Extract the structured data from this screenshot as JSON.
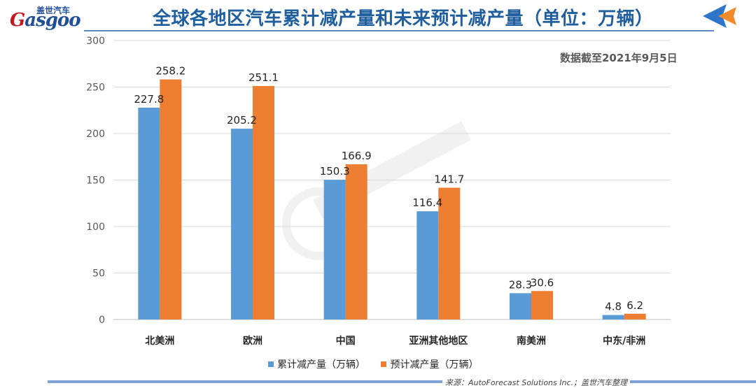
{
  "header": {
    "logo_cn": "盖世汽车",
    "logo_en_first": "G",
    "logo_en_rest": "asgoo",
    "title": "全球各地区汽车累计减产量和未来预计减产量（单位：万辆）"
  },
  "annotation": {
    "date_note": "数据截至2021年9月5日"
  },
  "colors": {
    "series1": "#5b9bd5",
    "series2": "#ed7d31",
    "grid": "#d9d9d9",
    "axis": "#bfbfbf",
    "title": "#1f5f9f",
    "brand_blue": "#1f4e9a",
    "brand_red": "#c8161d",
    "arrow_blue": "#2e74c9",
    "arrow_orange": "#f08a2c"
  },
  "chart_data": {
    "type": "bar",
    "title": "全球各地区汽车累计减产量和未来预计减产量（单位：万辆）",
    "categories": [
      "北美洲",
      "欧洲",
      "中国",
      "亚洲其他地区",
      "南美洲",
      "中东/非洲"
    ],
    "series": [
      {
        "name": "累计减产量（万辆）",
        "values": [
          227.8,
          205.2,
          150.3,
          116.4,
          28.3,
          4.8
        ]
      },
      {
        "name": "预计减产量（万辆）",
        "values": [
          258.2,
          251.1,
          166.9,
          141.7,
          30.6,
          6.2
        ]
      }
    ],
    "ylim": [
      0,
      300
    ],
    "yticks": [
      0,
      50,
      100,
      150,
      200,
      250,
      300
    ],
    "grid": true,
    "legend_position": "bottom",
    "xlabel": "",
    "ylabel": ""
  },
  "footer": {
    "source": "来源：AutoForecast Solutions Inc.；盖世汽车整理"
  }
}
